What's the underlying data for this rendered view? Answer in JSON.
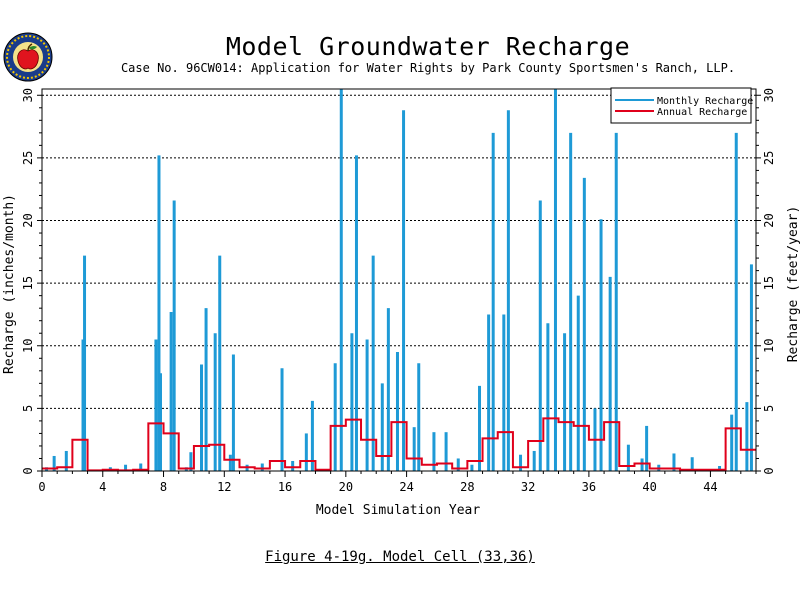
{
  "header": {
    "title": "Model Groundwater Recharge",
    "subtitle": "Case No. 96CW014: Application for Water Rights by Park County Sportsmen's Ranch, LLP.",
    "logo_icon": "apple-seal-logo"
  },
  "caption": "Figure 4-19g.  Model Cell (33,36)",
  "colors": {
    "monthly": "#1e9ad6",
    "annual": "#e0001b",
    "axis": "#000000"
  },
  "chart_data": {
    "type": "line",
    "xlabel": "Model Simulation Year",
    "ylabel_left": "Recharge (inches/month)",
    "ylabel_right": "Recharge (feet/year)",
    "xlim": [
      0,
      47
    ],
    "ylim": [
      0,
      30.5
    ],
    "xticks": [
      0,
      4,
      8,
      12,
      16,
      20,
      24,
      28,
      32,
      36,
      40,
      44
    ],
    "yticks": [
      0,
      5,
      10,
      15,
      20,
      25,
      30
    ],
    "grid": "horizontal dashed",
    "legend_position": "top-right",
    "series": [
      {
        "name": "Monthly Recharge",
        "type": "spikes",
        "x": [
          0.3,
          0.8,
          1.6,
          2.7,
          2.8,
          4.5,
          5.5,
          6.5,
          7.5,
          7.7,
          7.8,
          8.5,
          8.7,
          9.5,
          9.8,
          10.5,
          10.8,
          11.4,
          11.7,
          12.4,
          12.6,
          13.5,
          14.5,
          15.8,
          16.5,
          17.4,
          17.8,
          19.3,
          19.7,
          20.4,
          20.7,
          21.4,
          21.8,
          22.4,
          22.8,
          23.4,
          23.8,
          24.5,
          24.8,
          25.8,
          26.6,
          27.4,
          28.3,
          28.8,
          29.4,
          29.7,
          30.4,
          30.7,
          31.5,
          32.4,
          32.8,
          33.3,
          33.8,
          34.4,
          34.8,
          35.3,
          35.7,
          36.4,
          36.8,
          37.4,
          37.8,
          38.6,
          39.5,
          39.8,
          40.6,
          41.6,
          42.8,
          44.6,
          45.4,
          45.7,
          46.4,
          46.7
        ],
        "y": [
          0.3,
          1.2,
          1.6,
          10.5,
          17.2,
          0.3,
          0.5,
          0.6,
          10.5,
          25.2,
          7.8,
          12.7,
          21.6,
          0.3,
          1.5,
          8.5,
          13.0,
          11.0,
          17.2,
          1.3,
          9.3,
          0.5,
          0.6,
          8.2,
          0.8,
          3.0,
          5.6,
          8.6,
          30.5,
          11.0,
          25.2,
          10.5,
          17.2,
          7.0,
          13.0,
          9.5,
          28.8,
          3.5,
          8.6,
          3.1,
          3.1,
          1.0,
          0.5,
          6.8,
          12.5,
          27.0,
          12.5,
          28.8,
          1.3,
          1.6,
          21.6,
          11.8,
          30.5,
          11.0,
          27.0,
          14.0,
          23.4,
          5.0,
          20.1,
          15.5,
          27.0,
          2.1,
          1.0,
          3.6,
          0.5,
          1.4,
          1.1,
          0.4,
          4.5,
          27.0,
          5.5,
          16.5
        ]
      },
      {
        "name": "Annual Recharge",
        "type": "step",
        "values": [
          0.2,
          0.3,
          2.5,
          0.05,
          0.1,
          0.05,
          0.1,
          3.8,
          3.0,
          0.2,
          2.0,
          2.1,
          0.9,
          0.3,
          0.2,
          0.8,
          0.3,
          0.8,
          0.1,
          3.6,
          4.1,
          2.5,
          1.2,
          3.9,
          1.0,
          0.5,
          0.6,
          0.2,
          0.8,
          2.6,
          3.1,
          0.3,
          2.4,
          4.2,
          3.9,
          3.6,
          2.5,
          3.9,
          0.4,
          0.6,
          0.2,
          0.2,
          0.1,
          0.1,
          0.1,
          3.4,
          1.7
        ]
      }
    ]
  }
}
